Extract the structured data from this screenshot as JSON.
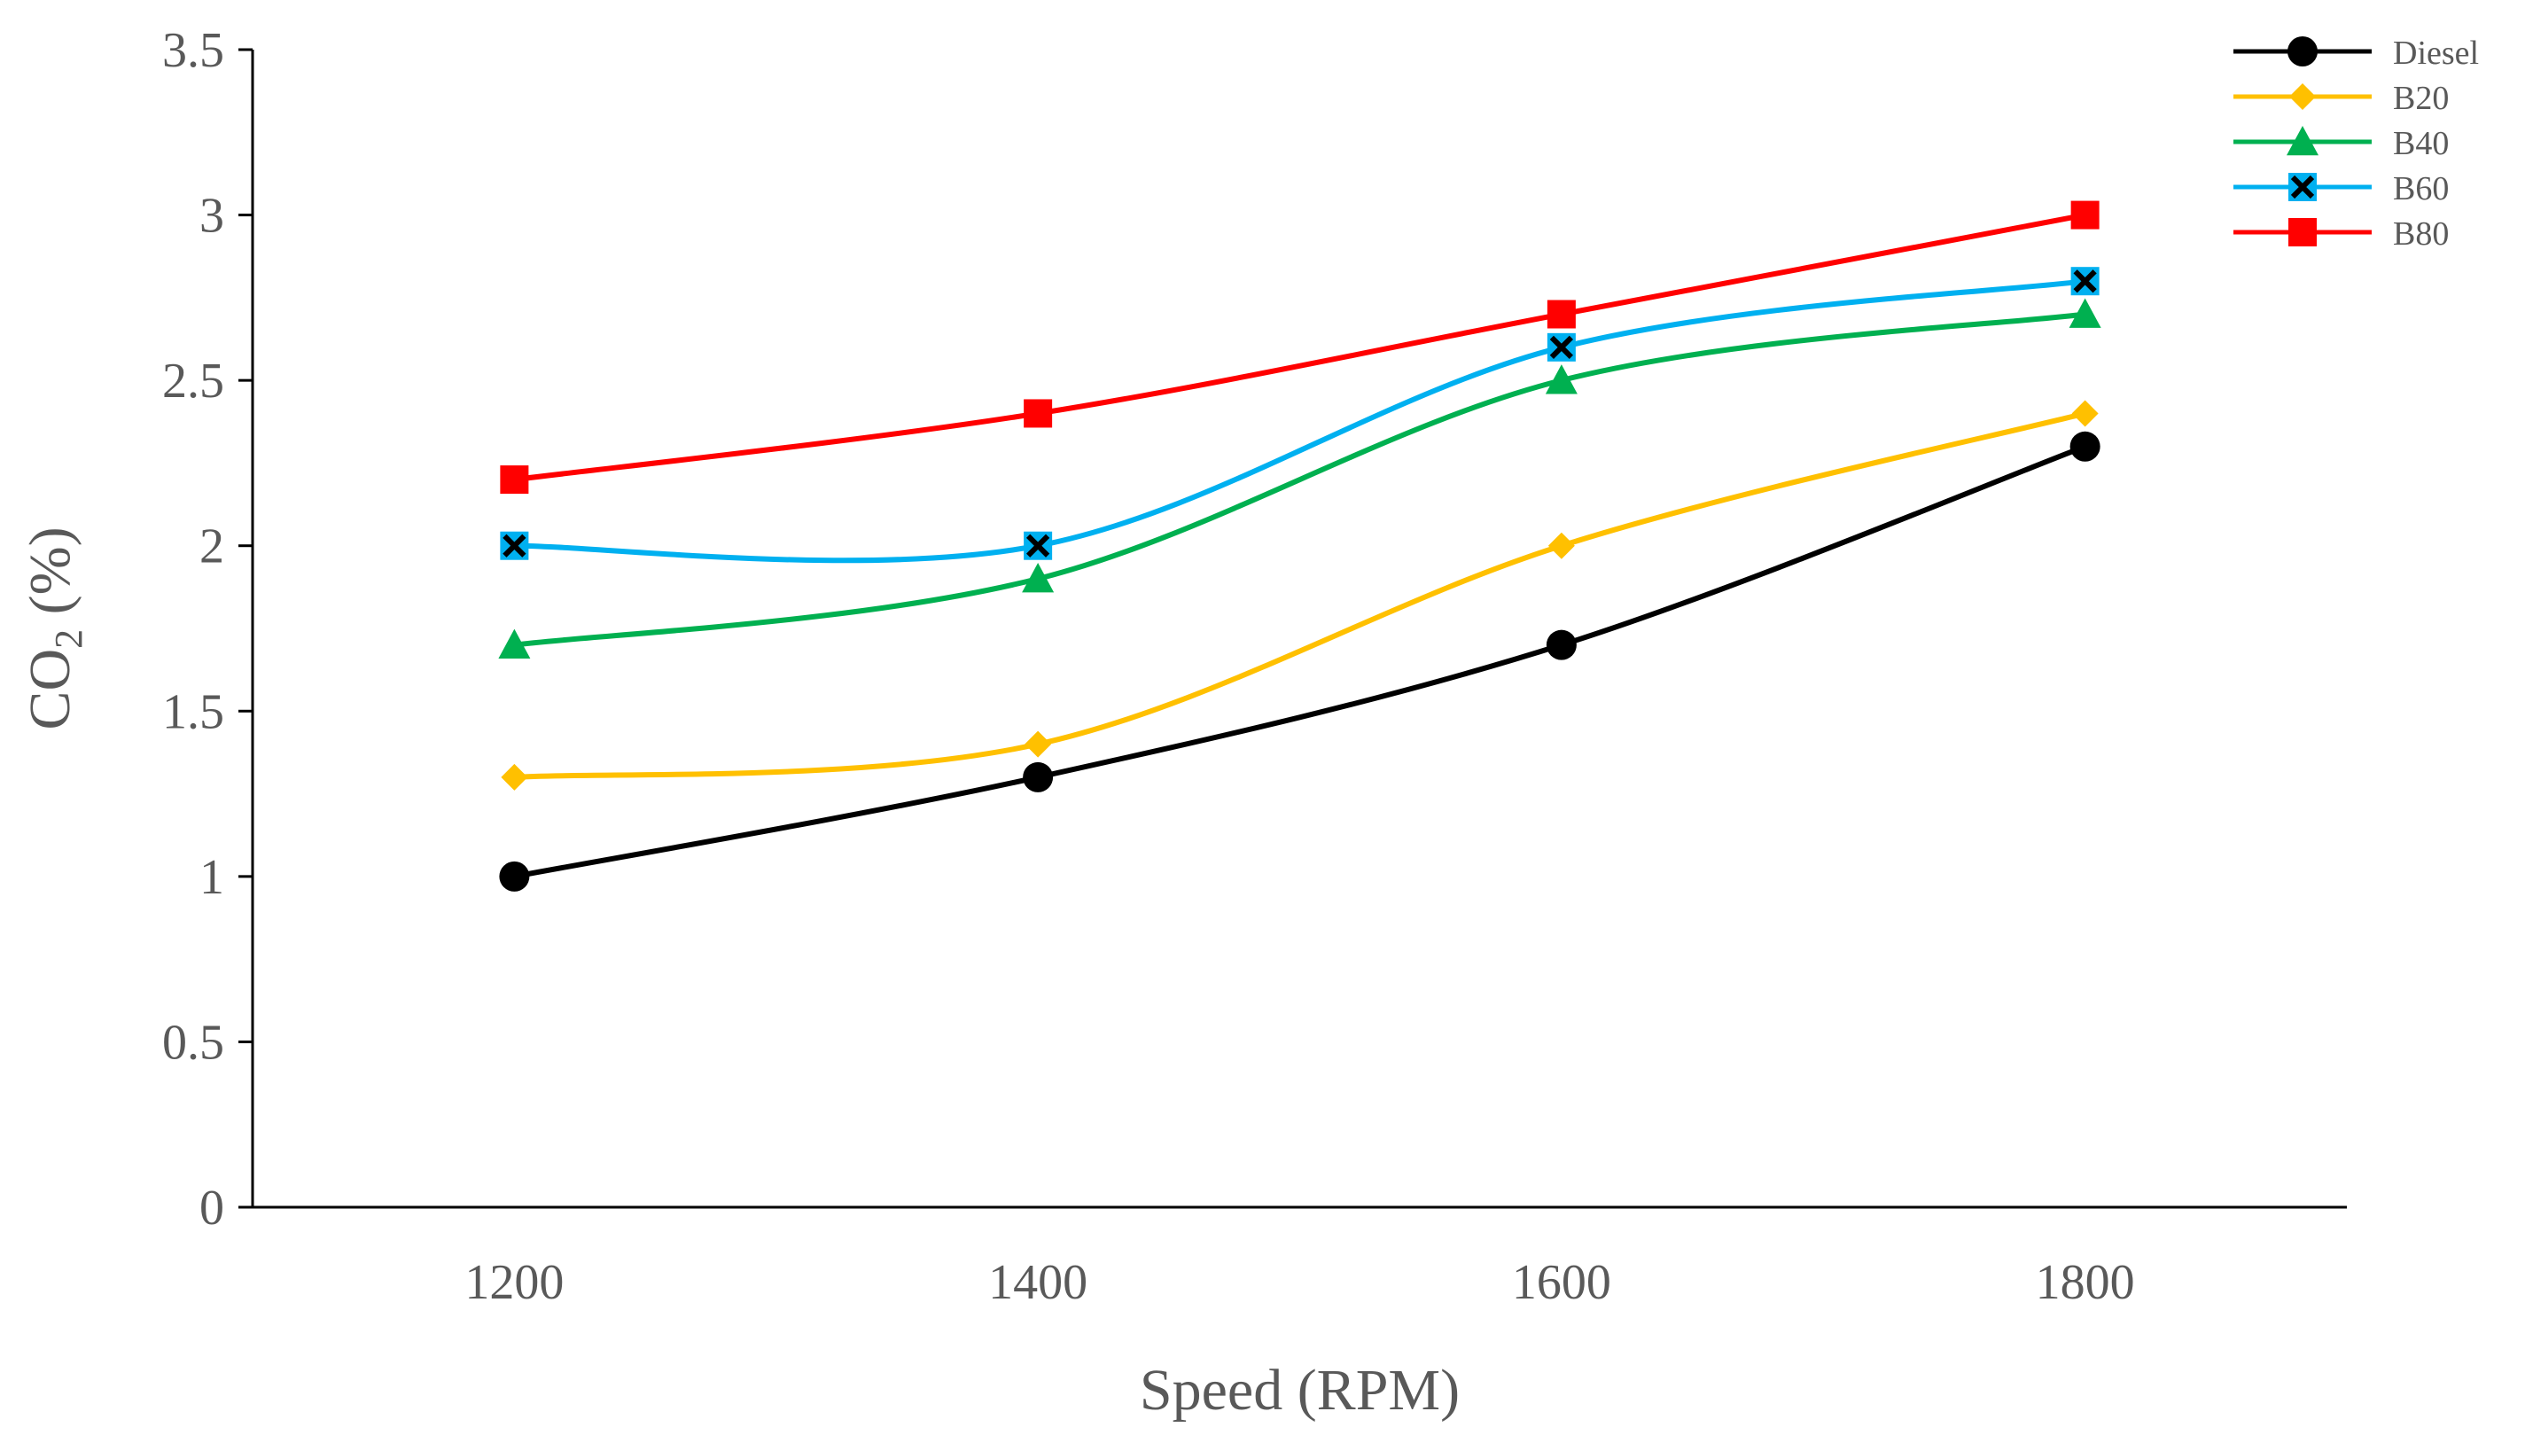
{
  "chart_data": {
    "type": "line",
    "title": "",
    "xlabel": "Speed (RPM)",
    "ylabel_main": "CO",
    "ylabel_sub": "2",
    "ylabel_suffix": " (%)",
    "x": [
      1200,
      1400,
      1600,
      1800
    ],
    "x_tick_labels": [
      "1200",
      "1400",
      "1600",
      "1800"
    ],
    "xlim": [
      1100,
      1900
    ],
    "ylim": [
      0,
      3.5
    ],
    "y_tick_labels": [
      "0",
      "0.5",
      "1",
      "1.5",
      "2",
      "2.5",
      "3",
      "3.5"
    ],
    "y_ticks": [
      0,
      0.5,
      1,
      1.5,
      2,
      2.5,
      3,
      3.5
    ],
    "grid": false,
    "legend_position": "top-right",
    "smooth": true,
    "series": [
      {
        "name": "Diesel",
        "values": [
          1.0,
          1.3,
          1.7,
          2.3
        ],
        "color": "#000000",
        "marker": "circle"
      },
      {
        "name": "B20",
        "values": [
          1.3,
          1.4,
          2.0,
          2.4
        ],
        "color": "#FFC000",
        "marker": "diamond"
      },
      {
        "name": "B40",
        "values": [
          1.7,
          1.9,
          2.5,
          2.7
        ],
        "color": "#00B050",
        "marker": "triangle"
      },
      {
        "name": "B60",
        "values": [
          2.0,
          2.0,
          2.6,
          2.8
        ],
        "color": "#00B0F0",
        "marker": "x-square"
      },
      {
        "name": "B80",
        "values": [
          2.2,
          2.4,
          2.7,
          3.0
        ],
        "color": "#FF0000",
        "marker": "square"
      }
    ]
  }
}
